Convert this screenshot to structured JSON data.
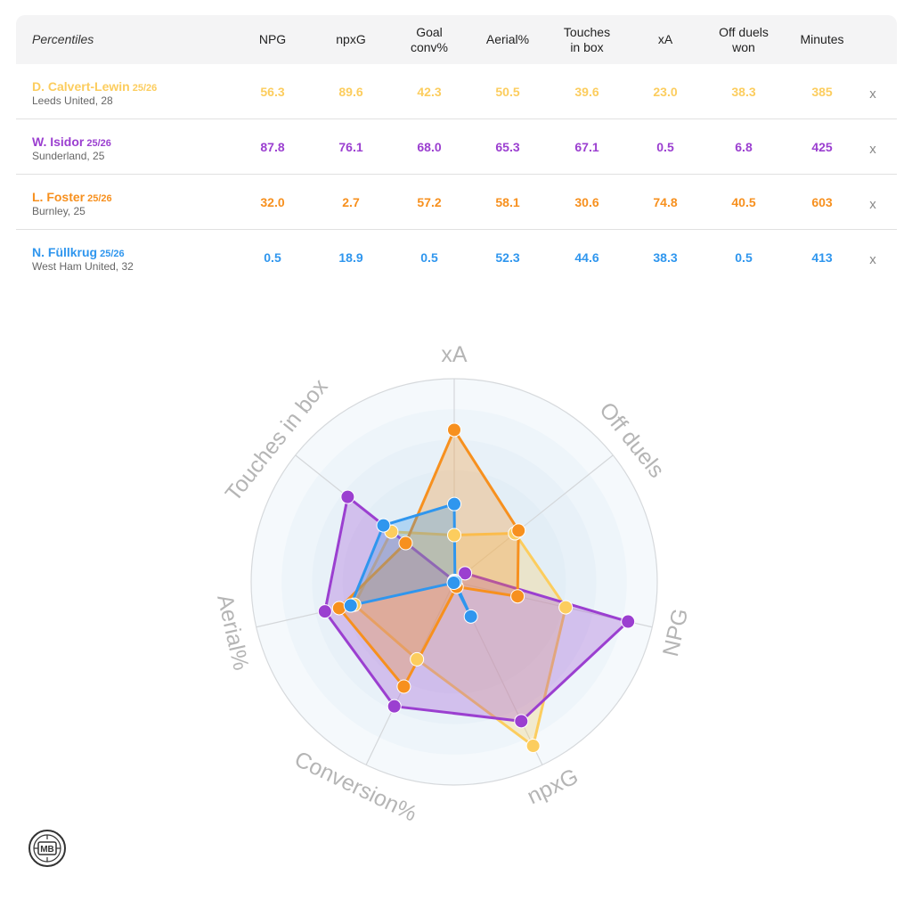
{
  "table": {
    "corner_label": "Percentiles",
    "columns": [
      "NPG",
      "npxG",
      "Goal\nconv%",
      "Aerial%",
      "Touches\nin box",
      "xA",
      "Off duels\nwon",
      "Minutes"
    ],
    "remove_label": "x",
    "players": [
      {
        "name": "D. Calvert-Lewin",
        "season": "25/26",
        "team": "Leeds United, 28",
        "color": "#fccd5e",
        "values": [
          "56.3",
          "89.6",
          "42.3",
          "50.5",
          "39.6",
          "23.0",
          "38.3",
          "385"
        ]
      },
      {
        "name": "W. Isidor",
        "season": "25/26",
        "team": "Sunderland, 25",
        "color": "#9b3fd0",
        "values": [
          "87.8",
          "76.1",
          "68.0",
          "65.3",
          "67.1",
          "0.5",
          "6.8",
          "425"
        ]
      },
      {
        "name": "L. Foster",
        "season": "25/26",
        "team": "Burnley, 25",
        "color": "#f7901e",
        "values": [
          "32.0",
          "2.7",
          "57.2",
          "58.1",
          "30.6",
          "74.8",
          "40.5",
          "603"
        ]
      },
      {
        "name": "N. Füllkrug",
        "season": "25/26",
        "team": "West Ham United, 32",
        "color": "#2f96ee",
        "values": [
          "0.5",
          "18.9",
          "0.5",
          "52.3",
          "44.6",
          "38.3",
          "0.5",
          "413"
        ]
      }
    ]
  },
  "chart_data": {
    "type": "radar",
    "axes": [
      "xA",
      "Off duels",
      "NPG",
      "npxG",
      "Conversion%",
      "Aerial%",
      "Touches in box"
    ],
    "range": [
      0,
      100
    ],
    "series": [
      {
        "name": "D. Calvert-Lewin",
        "color": "#fccd5e",
        "values": [
          23.0,
          38.3,
          56.3,
          89.6,
          42.3,
          50.5,
          39.6
        ]
      },
      {
        "name": "W. Isidor",
        "color": "#9b3fd0",
        "values": [
          0.5,
          6.8,
          87.8,
          76.1,
          68.0,
          65.3,
          67.1
        ]
      },
      {
        "name": "L. Foster",
        "color": "#f7901e",
        "values": [
          74.8,
          40.5,
          32.0,
          2.7,
          57.2,
          58.1,
          30.6
        ]
      },
      {
        "name": "N. Füllkrug",
        "color": "#2f96ee",
        "values": [
          38.3,
          0.5,
          0.5,
          18.9,
          0.5,
          52.3,
          44.6
        ]
      }
    ]
  },
  "logo": {
    "text": "MB"
  }
}
